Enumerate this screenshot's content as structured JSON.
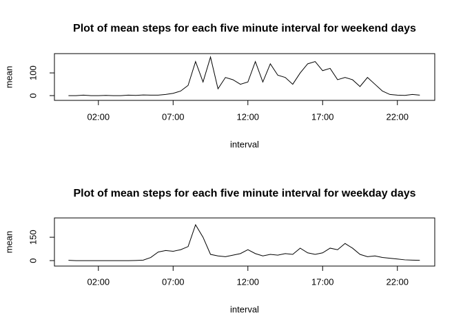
{
  "chart_data": [
    {
      "type": "line",
      "title": "Plot of mean steps for each five minute interval for weekend days",
      "x_label": "interval",
      "y_label": "mean",
      "color": "#000000",
      "x": [
        0,
        0.5,
        1,
        1.5,
        2,
        2.5,
        3,
        3.5,
        4,
        4.5,
        5,
        5.5,
        6,
        6.5,
        7,
        7.5,
        8,
        8.5,
        9,
        9.5,
        10,
        10.5,
        11,
        11.5,
        12,
        12.5,
        13,
        13.5,
        14,
        14.5,
        15,
        15.5,
        16,
        16.5,
        17,
        17.5,
        18,
        18.5,
        19,
        19.5,
        20,
        20.5,
        21,
        21.5,
        22,
        22.5,
        23,
        23.5
      ],
      "values": [
        0,
        0,
        2,
        0,
        0,
        1,
        0,
        0,
        2,
        1,
        3,
        2,
        2,
        5,
        10,
        20,
        45,
        150,
        60,
        170,
        30,
        80,
        70,
        50,
        60,
        150,
        60,
        140,
        90,
        80,
        50,
        100,
        140,
        150,
        110,
        120,
        70,
        80,
        70,
        40,
        80,
        50,
        20,
        5,
        2,
        1,
        5,
        2
      ],
      "xlim": [
        -0.94,
        24.5
      ],
      "xticks": [
        {
          "value": 2,
          "label": "02:00"
        },
        {
          "value": 7,
          "label": "07:00"
        },
        {
          "value": 12,
          "label": "12:00"
        },
        {
          "value": 17,
          "label": "17:00"
        },
        {
          "value": 22,
          "label": "22:00"
        }
      ],
      "ylim": [
        -21,
        185
      ],
      "yticks": [
        0,
        100
      ]
    },
    {
      "type": "line",
      "title": "Plot of mean steps for each five minute interval for weekday days",
      "x_label": "interval",
      "y_label": "mean",
      "color": "#000000",
      "x": [
        0,
        0.5,
        1,
        1.5,
        2,
        2.5,
        3,
        3.5,
        4,
        4.5,
        5,
        5.5,
        6,
        6.5,
        7,
        7.5,
        8,
        8.5,
        9,
        9.5,
        10,
        10.5,
        11,
        11.5,
        12,
        12.5,
        13,
        13.5,
        14,
        14.5,
        15,
        15.5,
        16,
        16.5,
        17,
        17.5,
        18,
        18.5,
        19,
        19.5,
        20,
        20.5,
        21,
        21.5,
        22,
        22.5,
        23,
        23.5
      ],
      "values": [
        2,
        0,
        0,
        0,
        0,
        0,
        0,
        0,
        0,
        1,
        3,
        20,
        55,
        65,
        60,
        70,
        90,
        230,
        150,
        40,
        30,
        25,
        35,
        45,
        70,
        45,
        30,
        40,
        35,
        45,
        40,
        80,
        50,
        40,
        50,
        80,
        70,
        110,
        80,
        40,
        25,
        30,
        20,
        15,
        10,
        5,
        3,
        2
      ],
      "xlim": [
        -0.94,
        24.5
      ],
      "xticks": [
        {
          "value": 2,
          "label": "02:00"
        },
        {
          "value": 7,
          "label": "07:00"
        },
        {
          "value": 12,
          "label": "12:00"
        },
        {
          "value": 17,
          "label": "17:00"
        },
        {
          "value": 22,
          "label": "22:00"
        }
      ],
      "ylim": [
        -35,
        274
      ],
      "yticks": [
        0,
        150
      ]
    }
  ]
}
